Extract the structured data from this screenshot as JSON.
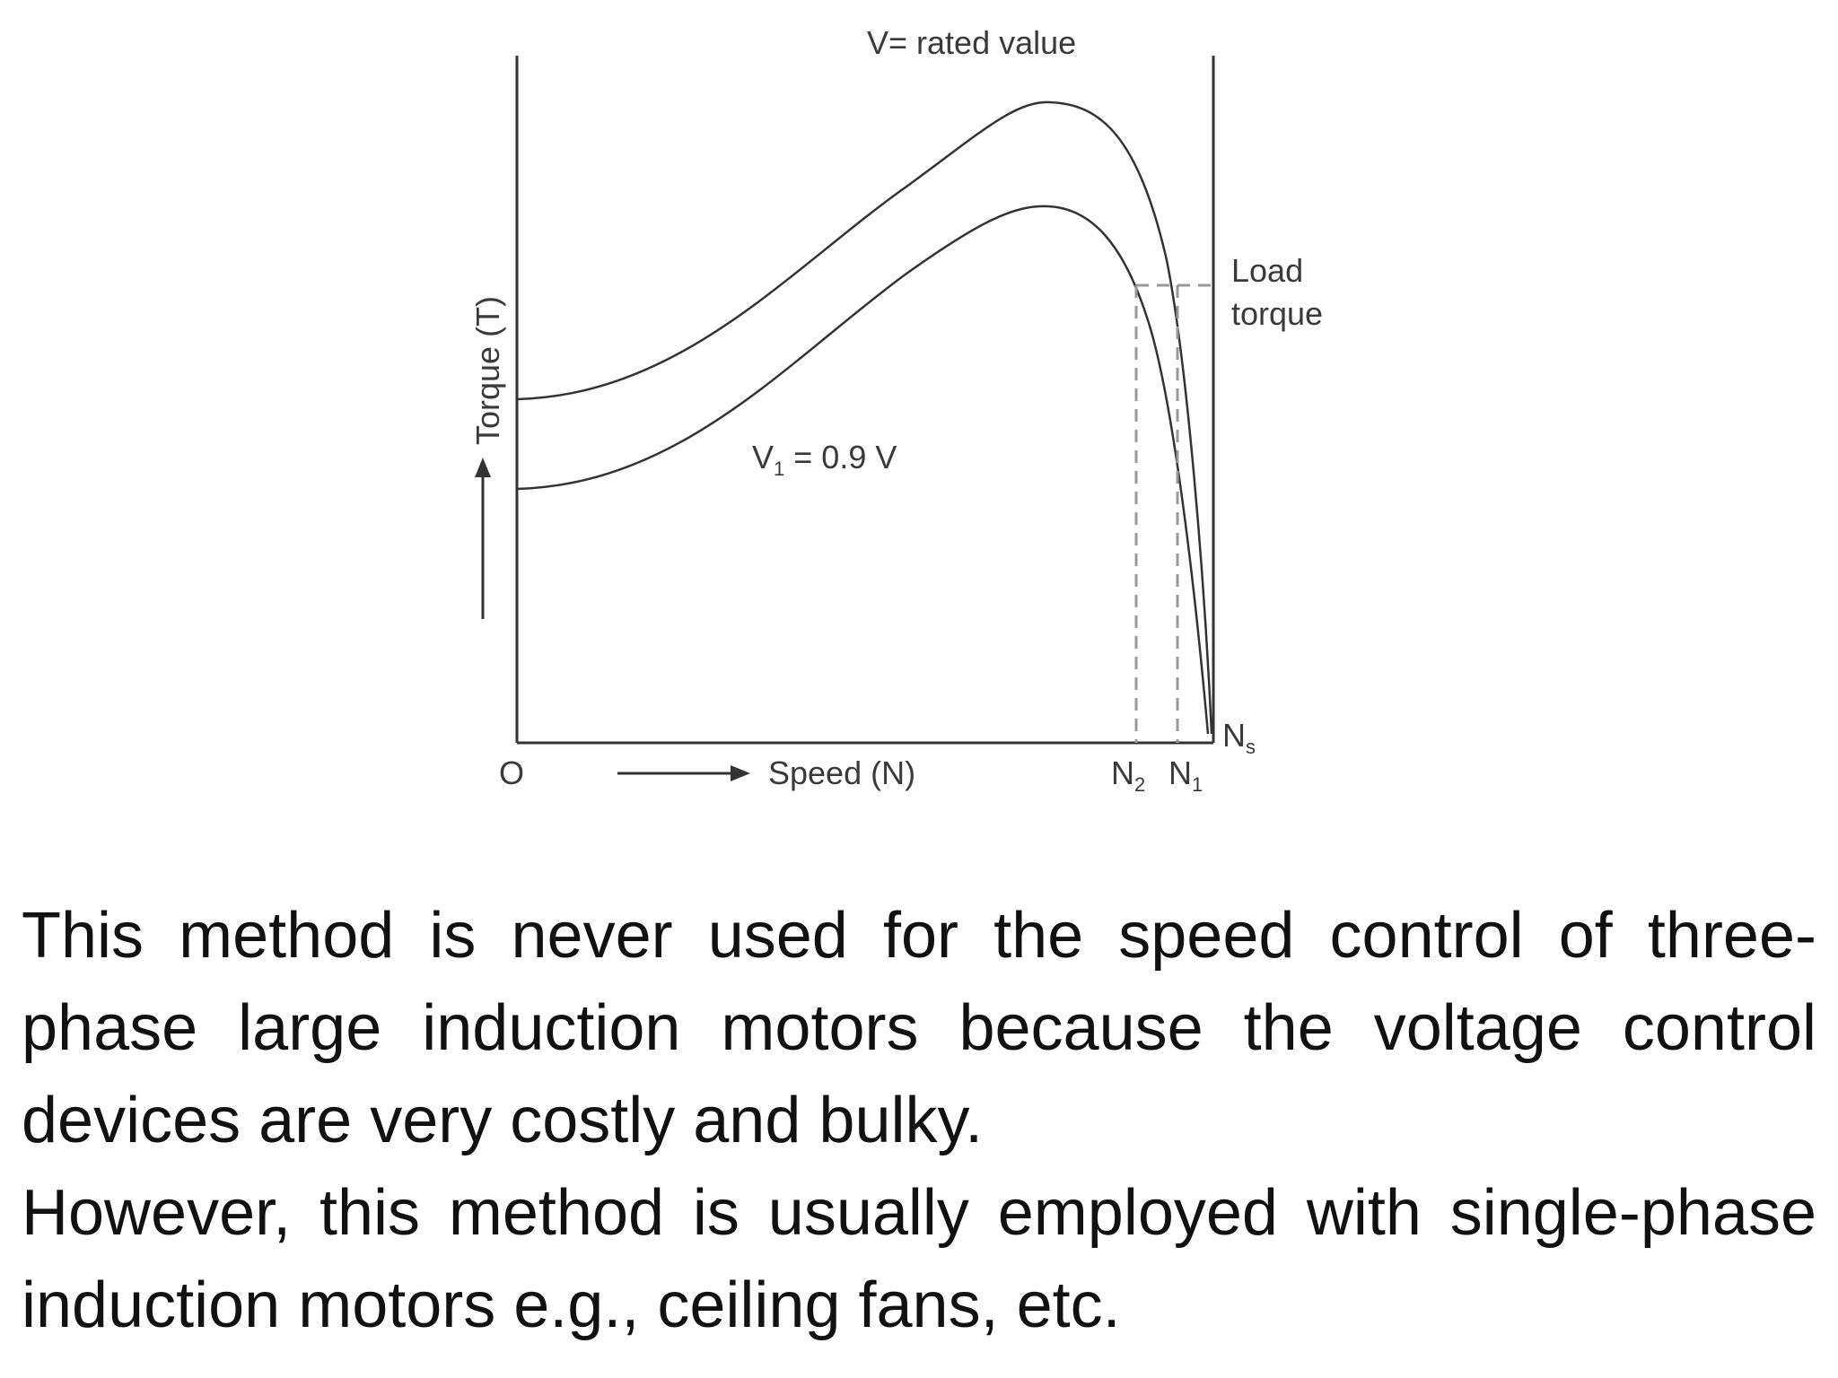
{
  "diagram": {
    "curve_top_label": "V= rated value",
    "curve_bottom_label_main": "V",
    "curve_bottom_label_sub": "1",
    "curve_bottom_label_rest": " = 0.9 V",
    "load_label_line1": "Load",
    "load_label_line2": "torque",
    "y_axis_label": "Torque (T)",
    "x_axis_label": "Speed (N)",
    "origin_label": "O",
    "n2_main": "N",
    "n2_sub": "2",
    "n1_main": "N",
    "n1_sub": "1",
    "ns_main": "N",
    "ns_sub": "s"
  },
  "text": {
    "paragraph_1": "This method is never used for the speed control of three-phase large induction motors because the voltage control devices are very costly and bulky.",
    "paragraph_2": "However, this method is usually employed with single-phase induction motors e.g., ceiling fans, etc."
  }
}
